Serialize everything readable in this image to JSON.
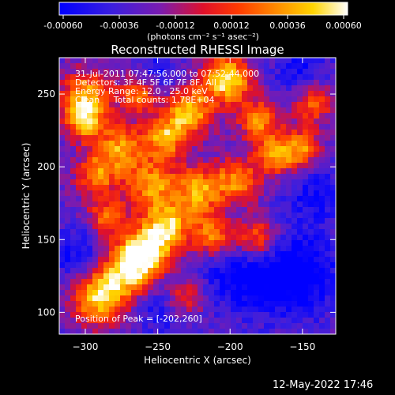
{
  "chart_data": {
    "type": "heatmap",
    "title": "Reconstructed RHESSI Image",
    "xlabel": "Heliocentric X (arcsec)",
    "ylabel": "Heliocentric Y (arcsec)",
    "xlim": [
      -318,
      -127
    ],
    "ylim": [
      85,
      275
    ],
    "xticks": [
      -300,
      -250,
      -200,
      -150
    ],
    "yticks": [
      100,
      150,
      200,
      250
    ],
    "colorbar": {
      "ticks": [
        "-0.00060",
        "-0.00036",
        "-0.00012",
        "0.00012",
        "0.00036",
        "0.00060"
      ],
      "unit_label": "(photons cm⁻² s⁻¹ asec⁻²)",
      "range": [
        -0.0006,
        0.0006
      ],
      "colors": [
        "#0000ff",
        "#6a1ecf",
        "#ff0000",
        "#ff8c00",
        "#ffd700",
        "#ffffff"
      ]
    },
    "annotations": [
      "31-Jul-2011 07:47:56.000 to 07:52:44.000",
      "Detectors: 3F 4F 5F 6F 7F 8F, All",
      "Energy Range: 12.0 - 25.0 keV",
      "Clean     Total counts: 1.78E+04"
    ],
    "peak_label": "Position of Peak = [-202,260]",
    "peak": [
      -202,
      260
    ],
    "bright_sources": [
      {
        "x": -292,
        "y": 110,
        "amp": 0.0005,
        "r": 12
      },
      {
        "x": -272,
        "y": 128,
        "amp": 0.00052,
        "r": 13
      },
      {
        "x": -257,
        "y": 143,
        "amp": 0.0005,
        "r": 12
      },
      {
        "x": -243,
        "y": 160,
        "amp": 0.00042,
        "r": 11
      },
      {
        "x": -255,
        "y": 188,
        "amp": 0.00036,
        "r": 12
      },
      {
        "x": -275,
        "y": 213,
        "amp": 0.00036,
        "r": 11
      },
      {
        "x": -245,
        "y": 220,
        "amp": 0.0004,
        "r": 10
      },
      {
        "x": -228,
        "y": 238,
        "amp": 0.00048,
        "r": 11
      },
      {
        "x": -202,
        "y": 260,
        "amp": 0.0006,
        "r": 11
      },
      {
        "x": -300,
        "y": 248,
        "amp": 0.0004,
        "r": 12
      },
      {
        "x": -292,
        "y": 195,
        "amp": 0.0003,
        "r": 10
      },
      {
        "x": -222,
        "y": 183,
        "amp": 0.00038,
        "r": 12
      },
      {
        "x": -212,
        "y": 152,
        "amp": 0.0004,
        "r": 10
      },
      {
        "x": -195,
        "y": 190,
        "amp": 0.0003,
        "r": 11
      },
      {
        "x": -182,
        "y": 150,
        "amp": 0.0004,
        "r": 11
      },
      {
        "x": -168,
        "y": 208,
        "amp": 0.0003,
        "r": 10
      },
      {
        "x": -150,
        "y": 213,
        "amp": 0.00028,
        "r": 9
      },
      {
        "x": -180,
        "y": 232,
        "amp": 0.0003,
        "r": 10
      },
      {
        "x": -143,
        "y": 245,
        "amp": 0.00028,
        "r": 10
      },
      {
        "x": -263,
        "y": 250,
        "amp": 0.0003,
        "r": 9
      },
      {
        "x": -285,
        "y": 165,
        "amp": 0.00028,
        "r": 9
      },
      {
        "x": -232,
        "y": 110,
        "amp": 0.00026,
        "r": 10
      },
      {
        "x": -300,
        "y": 230,
        "amp": 0.00036,
        "r": 9
      }
    ],
    "dark_regions": [
      {
        "x": -190,
        "y": 130,
        "amp": 0.0004,
        "r": 22
      },
      {
        "x": -150,
        "y": 125,
        "amp": 0.0004,
        "r": 20
      },
      {
        "x": -245,
        "y": 105,
        "amp": 0.0003,
        "r": 14
      },
      {
        "x": -140,
        "y": 180,
        "amp": 0.00028,
        "r": 15
      },
      {
        "x": -305,
        "y": 140,
        "amp": 0.0003,
        "r": 14
      },
      {
        "x": -150,
        "y": 265,
        "amp": 0.0003,
        "r": 14
      },
      {
        "x": -250,
        "y": 265,
        "amp": 0.00026,
        "r": 10
      }
    ]
  },
  "footer": {
    "date": "12-May-2022 17:46"
  }
}
